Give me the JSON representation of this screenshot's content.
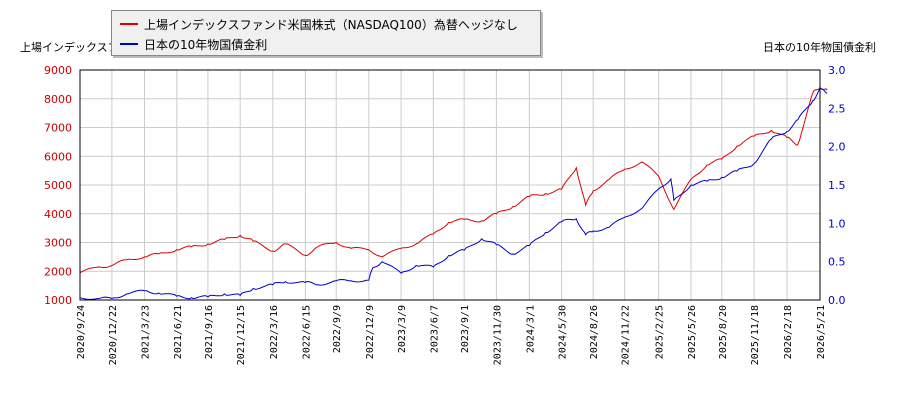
{
  "chart_data": {
    "type": "line",
    "y_left_label": "上場インデックスファンド米国株式（NASDAQ100）為替ヘッジなし",
    "y_right_label": "日本の10年物国債金利",
    "x_ticks": [
      "2020/9/24",
      "2020/12/22",
      "2021/3/23",
      "2021/6/21",
      "2021/9/16",
      "2021/12/15",
      "2022/3/16",
      "2022/6/15",
      "2022/9/9",
      "2022/12/9",
      "2023/3/9",
      "2023/6/7",
      "2023/9/1",
      "2023/11/30",
      "2024/3/1",
      "2024/5/30",
      "2024/8/26",
      "2024/11/22",
      "2025/2/25",
      "2025/5/26",
      "2025/8/20",
      "2025/11/18",
      "2026/2/18",
      "2026/5/21"
    ],
    "y_left_ticks": [
      1000,
      2000,
      3000,
      4000,
      5000,
      6000,
      7000,
      8000,
      9000
    ],
    "y_right_ticks": [
      "0.0",
      "0.5",
      "1.0",
      "1.5",
      "2.0",
      "2.5",
      "3.0"
    ],
    "y_left_range": [
      1000,
      9000
    ],
    "y_right_range": [
      0,
      3.0
    ],
    "grid": true,
    "legend_position": "top-left",
    "series": [
      {
        "name": "上場インデックスファンド米国株式（NASDAQ100）為替ヘッジなし",
        "axis": "left",
        "color": "#dd0000",
        "x": [
          "2020/9/24",
          "2020/11/15",
          "2020/12/22",
          "2021/2/1",
          "2021/3/23",
          "2021/5/1",
          "2021/6/21",
          "2021/8/1",
          "2021/9/16",
          "2021/11/1",
          "2021/12/15",
          "2022/1/20",
          "2022/3/16",
          "2022/4/20",
          "2022/6/15",
          "2022/7/20",
          "2022/9/9",
          "2022/10/20",
          "2022/12/9",
          "2023/1/15",
          "2023/3/9",
          "2023/4/20",
          "2023/6/7",
          "2023/7/20",
          "2023/9/1",
          "2023/10/20",
          "2023/11/30",
          "2024/1/15",
          "2024/3/1",
          "2024/4/15",
          "2024/5/30",
          "2024/7/10",
          "2024/8/5",
          "2024/8/26",
          "2024/10/10",
          "2024/11/22",
          "2025/1/10",
          "2025/2/25",
          "2025/4/8",
          "2025/5/26",
          "2025/7/10",
          "2025/8/20",
          "2025/10/1",
          "2025/11/18",
          "2026/1/5",
          "2026/2/18",
          "2026/3/20",
          "2026/5/1",
          "2026/5/21",
          "2026/6/10"
        ],
        "y": [
          1950,
          2150,
          2200,
          2400,
          2500,
          2600,
          2750,
          2850,
          2950,
          3100,
          3250,
          3050,
          2700,
          2950,
          2550,
          2850,
          3000,
          2800,
          2750,
          2500,
          2800,
          2950,
          3300,
          3700,
          3800,
          3750,
          4000,
          4250,
          4600,
          4700,
          4850,
          5600,
          4300,
          4800,
          5200,
          5550,
          5800,
          5300,
          4150,
          5200,
          5700,
          5900,
          6350,
          6700,
          6900,
          6650,
          6400,
          8200,
          8400,
          8300
        ]
      },
      {
        "name": "日本の10年物国債金利",
        "axis": "right",
        "color": "#0000cc",
        "x": [
          "2020/9/24",
          "2020/11/15",
          "2020/12/22",
          "2021/2/1",
          "2021/3/23",
          "2021/5/1",
          "2021/6/21",
          "2021/8/1",
          "2021/9/16",
          "2021/11/1",
          "2021/12/15",
          "2022/1/20",
          "2022/3/16",
          "2022/4/20",
          "2022/6/15",
          "2022/7/20",
          "2022/9/9",
          "2022/10/20",
          "2022/12/9",
          "2022/12/20",
          "2023/1/15",
          "2023/3/9",
          "2023/4/20",
          "2023/6/7",
          "2023/7/20",
          "2023/9/1",
          "2023/10/20",
          "2023/11/30",
          "2024/1/15",
          "2024/3/1",
          "2024/4/15",
          "2024/5/30",
          "2024/7/10",
          "2024/8/5",
          "2024/8/26",
          "2024/10/10",
          "2024/11/22",
          "2025/1/10",
          "2025/2/25",
          "2025/3/31",
          "2025/4/8",
          "2025/5/26",
          "2025/7/10",
          "2025/8/20",
          "2025/10/1",
          "2025/11/18",
          "2026/1/5",
          "2026/2/18",
          "2026/3/20",
          "2026/5/1",
          "2026/5/21",
          "2026/6/10"
        ],
        "y": [
          0.03,
          0.02,
          0.02,
          0.08,
          0.12,
          0.09,
          0.05,
          0.03,
          0.04,
          0.08,
          0.06,
          0.15,
          0.2,
          0.24,
          0.23,
          0.2,
          0.25,
          0.25,
          0.26,
          0.42,
          0.5,
          0.35,
          0.45,
          0.43,
          0.58,
          0.65,
          0.8,
          0.72,
          0.6,
          0.71,
          0.88,
          1.02,
          1.06,
          0.85,
          0.9,
          0.95,
          1.08,
          1.2,
          1.45,
          1.58,
          1.3,
          1.5,
          1.55,
          1.6,
          1.68,
          1.78,
          2.1,
          2.2,
          2.35,
          2.6,
          2.75,
          2.7
        ]
      }
    ]
  }
}
